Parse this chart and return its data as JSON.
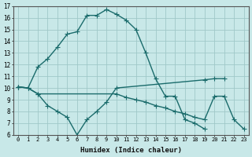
{
  "xlabel": "Humidex (Indice chaleur)",
  "xlim": [
    -0.5,
    23.5
  ],
  "ylim": [
    6,
    17
  ],
  "xticks": [
    0,
    1,
    2,
    3,
    4,
    5,
    6,
    7,
    8,
    9,
    10,
    11,
    12,
    13,
    14,
    15,
    16,
    17,
    18,
    19,
    20,
    21,
    22,
    23
  ],
  "yticks": [
    6,
    7,
    8,
    9,
    10,
    11,
    12,
    13,
    14,
    15,
    16,
    17
  ],
  "background_color": "#c8e8e8",
  "grid_color": "#a0c8c8",
  "line_color": "#1a6b6b",
  "line1_x": [
    0,
    1,
    2,
    3,
    4,
    5,
    6,
    7,
    8,
    9,
    10,
    11,
    12,
    13,
    14,
    15,
    16,
    17,
    18,
    19
  ],
  "line1_y": [
    10.1,
    10.0,
    11.8,
    12.5,
    13.5,
    14.6,
    14.8,
    16.2,
    16.2,
    16.7,
    16.3,
    15.8,
    15.0,
    13.0,
    10.8,
    9.3,
    9.3,
    7.3,
    7.0,
    6.5
  ],
  "line2_x": [
    0,
    1,
    2,
    3,
    4,
    5,
    6,
    7,
    8,
    9,
    10,
    19,
    20,
    21
  ],
  "line2_y": [
    10.1,
    10.0,
    9.5,
    8.5,
    8.0,
    7.5,
    6.0,
    7.3,
    8.0,
    8.8,
    10.0,
    10.7,
    10.8,
    10.8
  ],
  "line3_x": [
    0,
    1,
    2,
    10,
    11,
    12,
    13,
    14,
    15,
    16,
    17,
    18,
    19,
    20,
    21,
    22,
    23
  ],
  "line3_y": [
    10.1,
    10.0,
    9.5,
    9.5,
    9.2,
    9.0,
    8.8,
    8.5,
    8.3,
    8.0,
    7.8,
    7.5,
    7.3,
    9.3,
    9.3,
    7.3,
    6.5
  ],
  "linewidth": 1.0,
  "markersize": 4
}
